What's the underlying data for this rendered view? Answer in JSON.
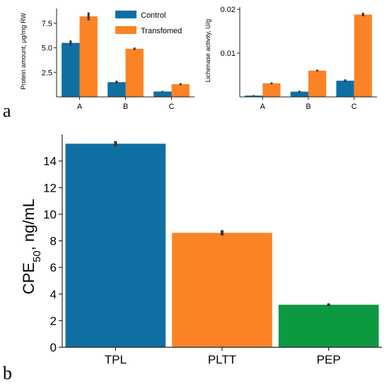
{
  "panels": {
    "a_label": "a",
    "b_label": "b"
  },
  "colors": {
    "blue": "#0f6fa3",
    "orange": "#fb8325",
    "green": "#0d9940",
    "axis": "#222222",
    "errorbar": "#333333"
  },
  "chart_data": [
    {
      "type": "bar",
      "categories": [
        "A",
        "B",
        "C"
      ],
      "series": [
        {
          "name": "Control",
          "values": [
            5.5,
            1.5,
            0.55
          ],
          "errors": [
            0.25,
            0.15,
            0.06
          ],
          "color": "#0f6fa3"
        },
        {
          "name": "Transfomed",
          "values": [
            8.2,
            4.9,
            1.3
          ],
          "errors": [
            0.4,
            0.12,
            0.1
          ],
          "color": "#fb8325"
        }
      ],
      "ylabel": "Protein amount, μg/mg RW",
      "ylim": [
        0,
        9
      ],
      "yticks": [
        2.5,
        5.0,
        7.5
      ],
      "ytick_labels": [
        "2.5",
        "5.0",
        "7.5"
      ],
      "legend_position": "top-center"
    },
    {
      "type": "bar",
      "categories": [
        "A",
        "B",
        "C"
      ],
      "series": [
        {
          "values": [
            0.0003,
            0.0012,
            0.0037
          ],
          "errors": [
            0.0001,
            0.0002,
            0.0003
          ],
          "color": "#0f6fa3"
        },
        {
          "values": [
            0.0031,
            0.006,
            0.0188
          ],
          "errors": [
            0.0002,
            0.0002,
            0.0004
          ],
          "color": "#fb8325"
        }
      ],
      "ylabel": "Lichenase activity, U/g",
      "ylim": [
        0,
        0.0205
      ],
      "yticks": [
        0.01,
        0.02
      ],
      "ytick_labels": [
        "0.01",
        "0.02"
      ]
    },
    {
      "type": "bar",
      "categories": [
        "TPL",
        "PLTT",
        "PEP"
      ],
      "values": [
        15.3,
        8.6,
        3.2
      ],
      "errors": [
        0.2,
        0.2,
        0.1
      ],
      "colors": [
        "#0f6fa3",
        "#fb8325",
        "#0d9940"
      ],
      "ylabel_main": "CPE",
      "ylabel_sub": "50",
      "ylabel_rest": ", ng/mL",
      "ylim": [
        0,
        16
      ],
      "yticks": [
        0,
        2,
        4,
        6,
        8,
        10,
        12,
        14
      ],
      "ytick_labels": [
        "0",
        "2",
        "4",
        "6",
        "8",
        "10",
        "12",
        "14"
      ]
    }
  ]
}
